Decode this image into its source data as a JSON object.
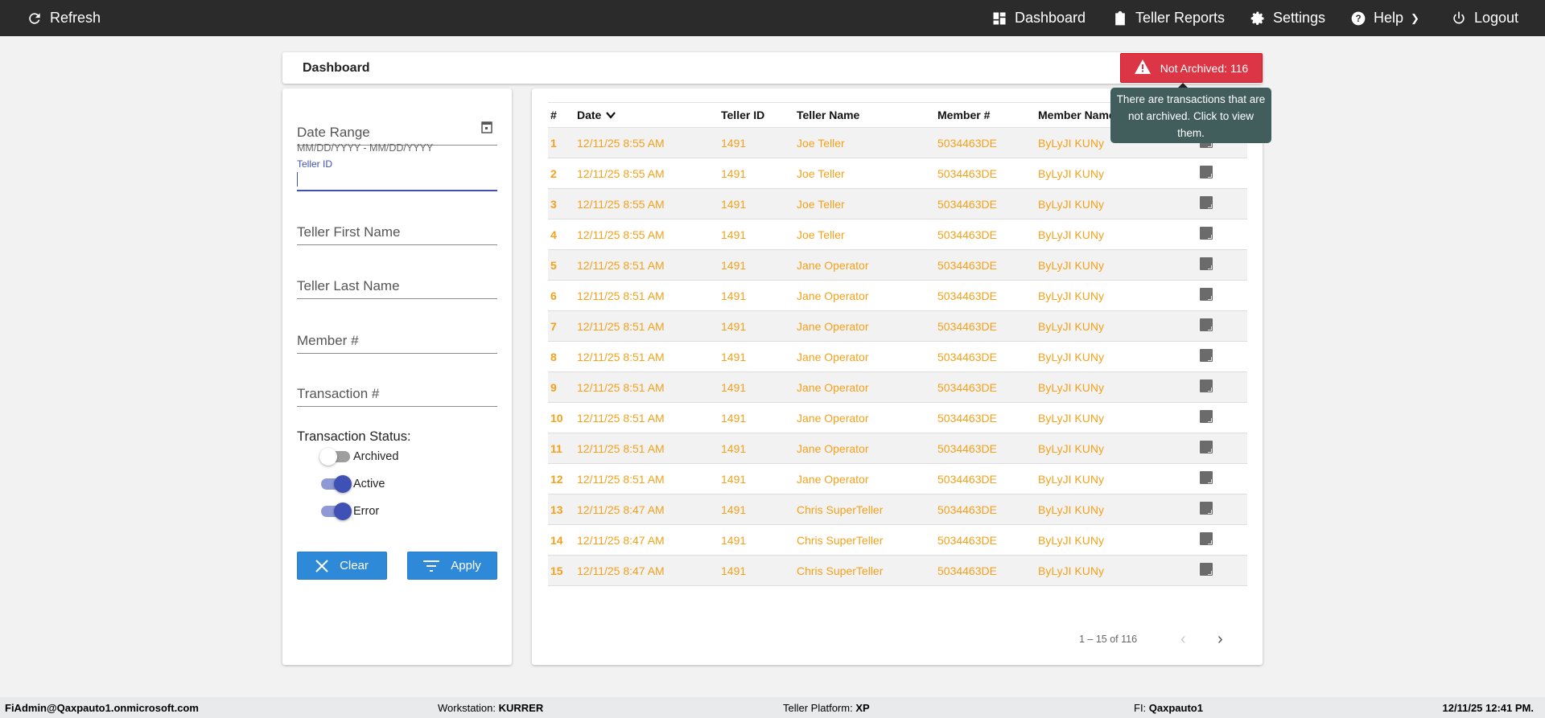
{
  "topbar": {
    "refresh": "Refresh",
    "dashboard": "Dashboard",
    "teller_reports": "Teller Reports",
    "settings": "Settings",
    "help": "Help",
    "logout": "Logout"
  },
  "header": {
    "title": "Dashboard",
    "not_archived": "Not Archived: 116",
    "tooltip": "There are transactions that are not archived. Click to view them.",
    "alert_color": "#dc3545"
  },
  "filters": {
    "date_range": "Date Range",
    "date_hint": "MM/DD/YYYY - MM/DD/YYYY",
    "teller_id": "Teller ID",
    "teller_id_value": "",
    "teller_first": "Teller First Name",
    "teller_last": "Teller Last Name",
    "member": "Member #",
    "transaction": "Transaction #",
    "status_label": "Transaction Status:",
    "toggles": [
      {
        "label": "Archived",
        "on": false
      },
      {
        "label": "Active",
        "on": true
      },
      {
        "label": "Error",
        "on": true
      }
    ],
    "clear": "Clear",
    "apply": "Apply"
  },
  "table": {
    "columns": [
      "#",
      "Date",
      "Teller ID",
      "Teller Name",
      "Member #",
      "Member Name"
    ],
    "rows": [
      [
        "1",
        "12/11/25 8:55 AM",
        "1491",
        "Joe Teller",
        "5034463DE",
        "ByLyJI KUNy"
      ],
      [
        "2",
        "12/11/25 8:55 AM",
        "1491",
        "Joe Teller",
        "5034463DE",
        "ByLyJI KUNy"
      ],
      [
        "3",
        "12/11/25 8:55 AM",
        "1491",
        "Joe Teller",
        "5034463DE",
        "ByLyJI KUNy"
      ],
      [
        "4",
        "12/11/25 8:55 AM",
        "1491",
        "Joe Teller",
        "5034463DE",
        "ByLyJI KUNy"
      ],
      [
        "5",
        "12/11/25 8:51 AM",
        "1491",
        "Jane Operator",
        "5034463DE",
        "ByLyJI KUNy"
      ],
      [
        "6",
        "12/11/25 8:51 AM",
        "1491",
        "Jane Operator",
        "5034463DE",
        "ByLyJI KUNy"
      ],
      [
        "7",
        "12/11/25 8:51 AM",
        "1491",
        "Jane Operator",
        "5034463DE",
        "ByLyJI KUNy"
      ],
      [
        "8",
        "12/11/25 8:51 AM",
        "1491",
        "Jane Operator",
        "5034463DE",
        "ByLyJI KUNy"
      ],
      [
        "9",
        "12/11/25 8:51 AM",
        "1491",
        "Jane Operator",
        "5034463DE",
        "ByLyJI KUNy"
      ],
      [
        "10",
        "12/11/25 8:51 AM",
        "1491",
        "Jane Operator",
        "5034463DE",
        "ByLyJI KUNy"
      ],
      [
        "11",
        "12/11/25 8:51 AM",
        "1491",
        "Jane Operator",
        "5034463DE",
        "ByLyJI KUNy"
      ],
      [
        "12",
        "12/11/25 8:51 AM",
        "1491",
        "Jane Operator",
        "5034463DE",
        "ByLyJI KUNy"
      ],
      [
        "13",
        "12/11/25 8:47 AM",
        "1491",
        "Chris SuperTeller",
        "5034463DE",
        "ByLyJI KUNy"
      ],
      [
        "14",
        "12/11/25 8:47 AM",
        "1491",
        "Chris SuperTeller",
        "5034463DE",
        "ByLyJI KUNy"
      ],
      [
        "15",
        "12/11/25 8:47 AM",
        "1491",
        "Chris SuperTeller",
        "5034463DE",
        "ByLyJI KUNy"
      ]
    ],
    "pagination": "1 – 15 of 116",
    "row_text_color": "#f5a11a"
  },
  "footer": {
    "user": "FiAdmin@Qaxpauto1.onmicrosoft.com",
    "workstation_label": "Workstation: ",
    "workstation": "KURRER",
    "platform_label": "Teller Platform: ",
    "platform": "XP",
    "fi_label": "FI: ",
    "fi": "Qaxpauto1",
    "datetime": "12/11/25 12:41 PM."
  }
}
